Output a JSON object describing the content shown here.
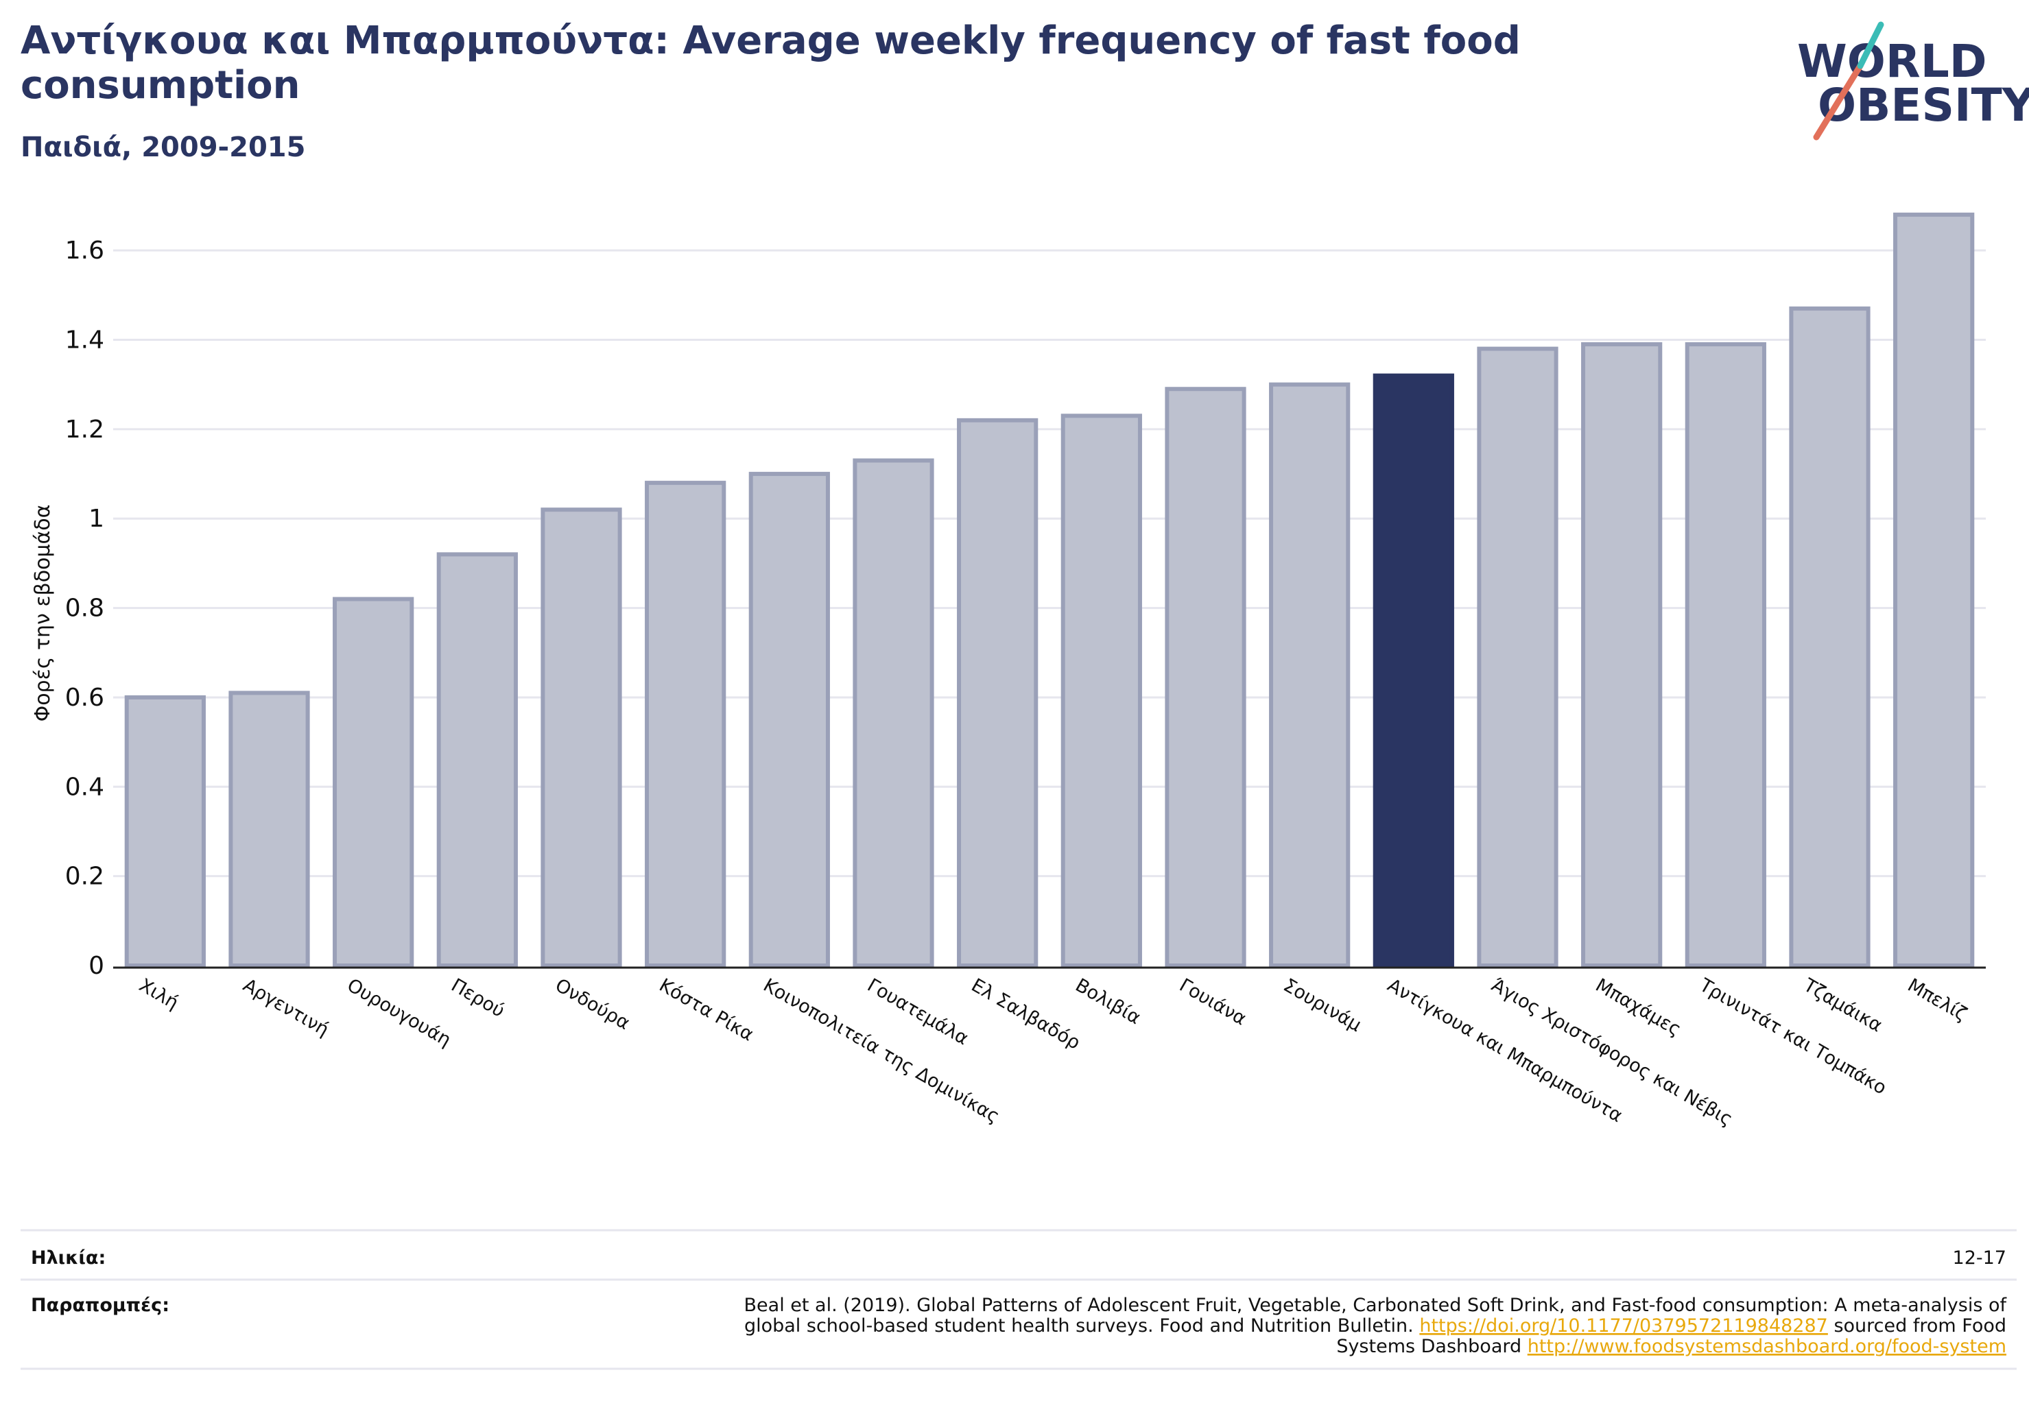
{
  "header": {
    "title_line1": "Αντίγκουα και Μπαρμπούντα: Average weekly frequency of fast food",
    "title_line2": "consumption",
    "subtitle": "Παιδιά, 2009-2015"
  },
  "logo": {
    "line1": "WORLD",
    "line2": "OBESITY"
  },
  "chart_data": {
    "type": "bar",
    "title": "Αντίγκουα και Μπαρμπούντα: Average weekly frequency of fast food consumption",
    "subtitle": "Παιδιά, 2009-2015",
    "ylabel": "Φορές την εβδομάδα",
    "xlabel": "",
    "ylim": [
      0,
      1.7
    ],
    "yticks": [
      0,
      0.2,
      0.4,
      0.6,
      0.8,
      1,
      1.2,
      1.4,
      1.6
    ],
    "ytick_labels": [
      "0",
      "0.2",
      "0.4",
      "0.6",
      "0.8",
      "1",
      "1.2",
      "1.4",
      "1.6"
    ],
    "grid": true,
    "highlight": "Αντίγκουα και Μπαρμπούντα",
    "colors": {
      "highlight": "#2a3562",
      "bar_fill": "#bdc1cf",
      "bar_stroke": "#9aa0b8",
      "grid": "#e6e6ee",
      "axis": "#222222"
    },
    "categories": [
      "Χιλή",
      "Αργεντινή",
      "Ουρουγουάη",
      "Περού",
      "Ονδούρα",
      "Κόστα Ρίκα",
      "Κοινοπολιτεία της Δομινίκας",
      "Γουατεμάλα",
      "Ελ Σαλβαδόρ",
      "Βολιβία",
      "Γουιάνα",
      "Σουρινάμ",
      "Αντίγκουα και Μπαρμπούντα",
      "Άγιος Χριστόφορος και Νέβις",
      "Μπαχάμες",
      "Τρινιντάτ και Τομπάκο",
      "Τζαμάικα",
      "Μπελίζ"
    ],
    "values": [
      0.6,
      0.61,
      0.82,
      0.92,
      1.02,
      1.08,
      1.1,
      1.13,
      1.22,
      1.23,
      1.29,
      1.3,
      1.32,
      1.38,
      1.39,
      1.39,
      1.47,
      1.68
    ]
  },
  "footer": {
    "age_label": "Ηλικία:",
    "age_value": "12-17",
    "refs_label": "Παραπομπές:",
    "ref_line1": "Beal et al. (2019). Global Patterns of Adolescent Fruit, Vegetable, Carbonated Soft Drink, and Fast-food consumption: A meta-analysis of",
    "ref_line2_pre": "global school-based student health surveys. Food and Nutrition Bulletin.",
    "ref_link1": "https://doi.org/10.1177/0379572119848287",
    "ref_line2_post": "sourced from Food",
    "ref_line3_pre": "Systems Dashboard",
    "ref_link2": "http://www.foodsystemsdashboard.org/food-system"
  }
}
